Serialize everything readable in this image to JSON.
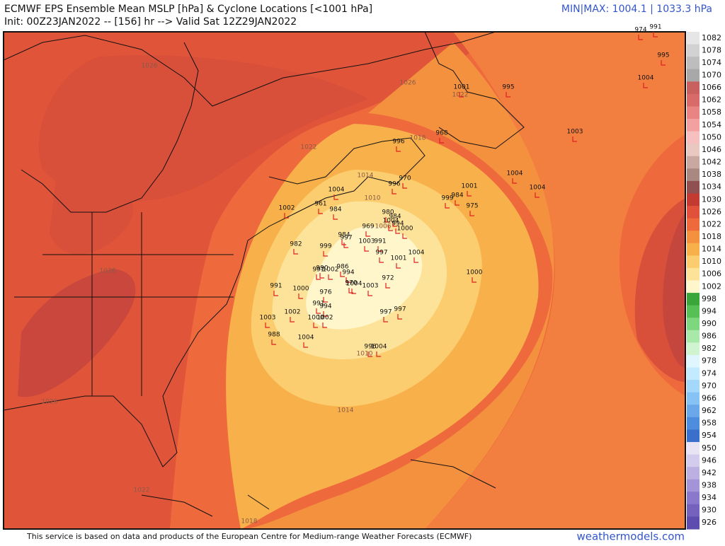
{
  "header": {
    "title": "ECMWF EPS Ensemble Mean MSLP [hPa] & Cyclone Locations [<1001 hPa]",
    "init": "Init: 00Z23JAN2022 -- [156] hr --> Valid Sat 12Z29JAN2022",
    "minmax": "MIN|MAX: 1004.1 | 1033.3 hPa"
  },
  "colorbar": {
    "labels": [
      "1082",
      "1078",
      "1074",
      "1070",
      "1066",
      "1062",
      "1058",
      "1054",
      "1050",
      "1046",
      "1042",
      "1038",
      "1034",
      "1030",
      "1026",
      "1022",
      "1018",
      "1014",
      "1010",
      "1006",
      "1002",
      "998",
      "994",
      "990",
      "986",
      "982",
      "978",
      "974",
      "970",
      "966",
      "962",
      "958",
      "954",
      "950",
      "946",
      "942",
      "938",
      "934",
      "930",
      "926"
    ],
    "colors": [
      "#e6e6e6",
      "#d2d2d2",
      "#bdbdbd",
      "#a8a8a8",
      "#c86060",
      "#d86a6a",
      "#e88484",
      "#f2a0a0",
      "#f6c0c0",
      "#e8c8c0",
      "#c8a8a0",
      "#a88880",
      "#905050",
      "#c23a30",
      "#e0503a",
      "#ee6a3d",
      "#f4913e",
      "#f8b04a",
      "#fbcd6e",
      "#fde39a",
      "#fff6cc",
      "#3aa63a",
      "#56c056",
      "#7ed67e",
      "#a8e8a8",
      "#d0f4d0",
      "#e0f6ff",
      "#c2ebff",
      "#a4d8fb",
      "#86c2f4",
      "#6aa8ea",
      "#4e8cde",
      "#3a70cc",
      "#e8e4f4",
      "#d4ccec",
      "#bcb0e2",
      "#a294d6",
      "#8a78ca",
      "#7462bc",
      "#5e4cae"
    ]
  },
  "contours": [
    "1026",
    "1026",
    "1022",
    "1022",
    "1018",
    "1014",
    "1010",
    "1006",
    "1010",
    "1014",
    "1026",
    "1026",
    "1022",
    "1018"
  ],
  "cyclones": [
    "974",
    "991",
    "995",
    "1004",
    "995",
    "1001",
    "1003",
    "968",
    "996",
    "1004",
    "1004",
    "970",
    "996",
    "1001",
    "984",
    "999",
    "975",
    "1004",
    "961",
    "984",
    "1002",
    "980",
    "984",
    "1004",
    "994",
    "969",
    "1000",
    "984",
    "997",
    "1003",
    "991",
    "982",
    "999",
    "997",
    "1004",
    "1001",
    "986",
    "990",
    "991",
    "1002",
    "994",
    "1000",
    "972",
    "970",
    "1004",
    "1003",
    "991",
    "1000",
    "976",
    "991",
    "994",
    "997",
    "997",
    "1002",
    "1000",
    "1002",
    "1003",
    "988",
    "1004",
    "996",
    "1004"
  ],
  "footer": "This service is based on data and products of the European Centre for Medium-range Weather Forecasts (ECMWF)",
  "brand": "weathermodels.com"
}
